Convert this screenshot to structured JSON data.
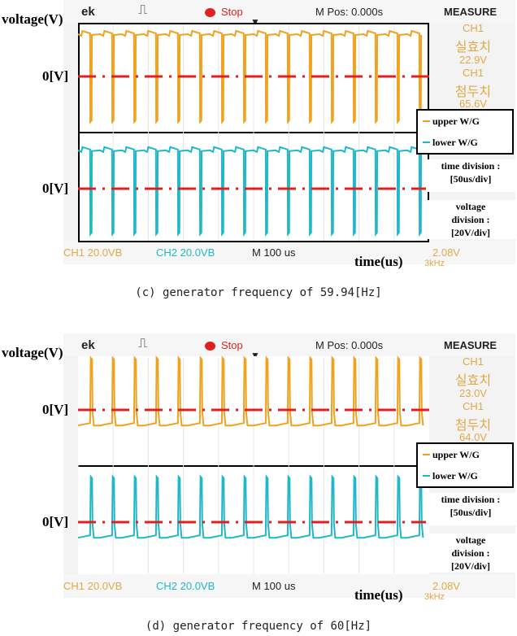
{
  "chart_data": [
    {
      "type": "line",
      "panel": "c",
      "caption": "(c) generator frequency of 59.94[Hz]",
      "ylabel": "voltage(V)",
      "xlabel": "time(us)",
      "zero_label": "0[V]",
      "top_bar": {
        "brand": "ek",
        "stop": "Stop",
        "mpos": "M Pos: 0.000s",
        "measure": "MEASURE"
      },
      "measure_panel": [
        "CH1",
        "실효치",
        "22.9V",
        "CH1",
        "첨두치",
        "65.6V"
      ],
      "bottom_bar": {
        "ch1": "CH1  20.0VB",
        "ch2": "CH2  20.0VB",
        "m": "M 100 us",
        "right": "2.08V",
        "right2": "3kHz"
      },
      "legend": [
        "upper W/G",
        "lower W/G"
      ],
      "time_division": [
        "time division :",
        "[50us/div]"
      ],
      "voltage_division": [
        "voltage",
        "division :",
        "[20V/div]"
      ],
      "series": [
        {
          "name": "upper W/G",
          "color": "#f0a21e",
          "pulses": 16,
          "level_high": 35,
          "level_low": -35,
          "shape": "square"
        },
        {
          "name": "lower W/G",
          "color": "#20b8c8",
          "pulses": 16,
          "level_high": 32,
          "level_low": -35,
          "shape": "square"
        }
      ]
    },
    {
      "type": "line",
      "panel": "d",
      "caption": "(d) generator frequency of 60[Hz]",
      "ylabel": "voltage(V)",
      "xlabel": "time(us)",
      "zero_label": "0[V]",
      "top_bar": {
        "brand": "ek",
        "stop": "Stop",
        "mpos": "M Pos: 0.000s",
        "measure": "MEASURE"
      },
      "measure_panel": [
        "CH1",
        "실효치",
        "23.0V",
        "CH1",
        "첨두치",
        "64.0V"
      ],
      "bottom_bar": {
        "ch1": "CH1  20.0VB",
        "ch2": "CH2  20.0VB",
        "m": "M 100 us",
        "right": "2.08V",
        "right2": "3kHz"
      },
      "legend": [
        "upper W/G",
        "lower W/G"
      ],
      "time_division": [
        "time division :",
        "[50us/div]"
      ],
      "voltage_division": [
        "voltage",
        "division :",
        "[20V/div]"
      ],
      "series": [
        {
          "name": "upper W/G",
          "color": "#f0a21e",
          "pulses": 16,
          "level_high": 40,
          "level_low": -12,
          "shape": "spike"
        },
        {
          "name": "lower W/G",
          "color": "#20b8c8",
          "pulses": 16,
          "level_high": 35,
          "level_low": -12,
          "shape": "spike"
        }
      ]
    }
  ]
}
